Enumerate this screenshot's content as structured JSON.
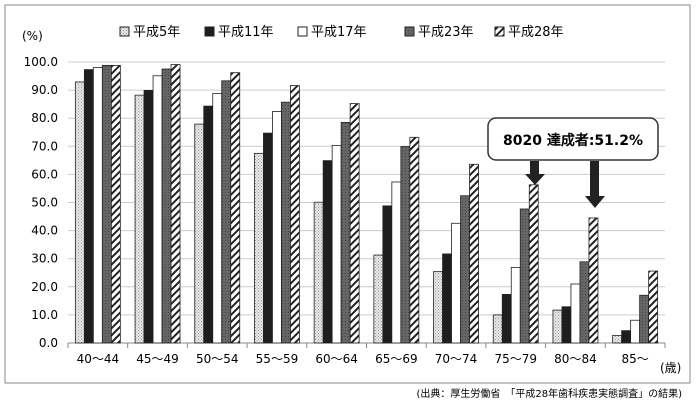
{
  "chart_data": {
    "type": "bar",
    "ylabel": "(%)",
    "xunit": "(歳)",
    "ylim": [
      0,
      100
    ],
    "yticks": [
      "0.0",
      "10.0",
      "20.0",
      "30.0",
      "40.0",
      "50.0",
      "60.0",
      "70.0",
      "80.0",
      "90.0",
      "100.0"
    ],
    "grid": true,
    "legend_position": "top",
    "categories": [
      "40〜44",
      "45〜49",
      "50〜54",
      "55〜59",
      "60〜64",
      "65〜69",
      "70〜74",
      "75〜79",
      "80〜84",
      "85〜"
    ],
    "series": [
      {
        "name": "平成5年",
        "pattern": "dotted-light",
        "values": [
          92.9,
          88.2,
          77.9,
          67.5,
          50.1,
          31.3,
          25.4,
          10.0,
          11.7,
          2.7
        ]
      },
      {
        "name": "平成11年",
        "pattern": "solid-black",
        "values": [
          97.3,
          89.9,
          84.3,
          74.7,
          64.9,
          48.8,
          31.7,
          17.3,
          12.9,
          4.4
        ]
      },
      {
        "name": "平成17年",
        "pattern": "white",
        "values": [
          98.0,
          95.1,
          88.8,
          82.4,
          70.3,
          57.3,
          42.6,
          26.9,
          21.0,
          8.1
        ]
      },
      {
        "name": "平成23年",
        "pattern": "dark-gray",
        "values": [
          98.8,
          97.5,
          93.3,
          85.7,
          78.5,
          69.9,
          52.4,
          47.7,
          28.9,
          17.0
        ]
      },
      {
        "name": "平成28年",
        "pattern": "hatched",
        "values": [
          98.8,
          99.1,
          96.2,
          91.6,
          85.2,
          73.2,
          63.6,
          56.3,
          44.5,
          25.6
        ]
      }
    ],
    "annotation": "8020 達成者:51.2%",
    "source": "(出典：厚生労働省　「平成28年歯科疾患実態調査」の結果)"
  }
}
